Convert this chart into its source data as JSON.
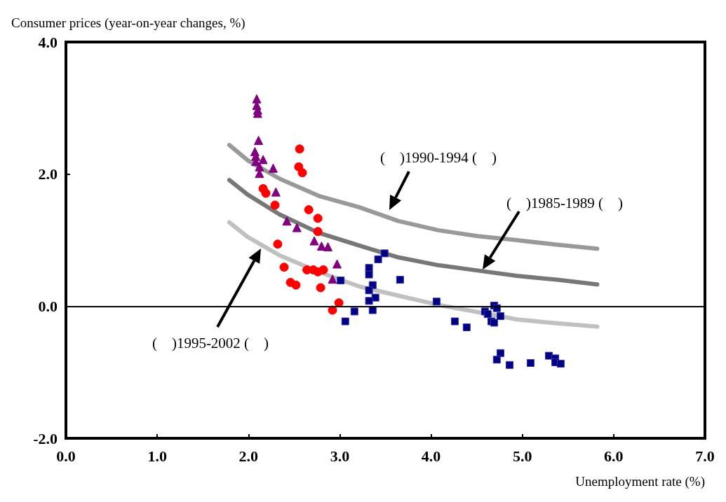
{
  "chart_data": {
    "type": "scatter",
    "xlabel": "Unemployment rate (%)",
    "ylabel": "Consumer prices (year-on-year changes, %)",
    "xlim": [
      0,
      7
    ],
    "xticks": [
      {
        "value": 0,
        "label": "0.0"
      },
      {
        "value": 1,
        "label": "1.0"
      },
      {
        "value": 2,
        "label": "2.0"
      },
      {
        "value": 3,
        "label": "3.0"
      },
      {
        "value": 4,
        "label": "4.0"
      },
      {
        "value": 5,
        "label": "5.0"
      },
      {
        "value": 6,
        "label": "6.0"
      },
      {
        "value": 7,
        "label": "7.0"
      }
    ],
    "ylim": [
      -2,
      4
    ],
    "yticks": [
      {
        "value": -2,
        "label": "-2.0"
      },
      {
        "value": 0,
        "label": "0.0"
      },
      {
        "value": 2,
        "label": "2.0"
      },
      {
        "value": 4,
        "label": "4.0"
      }
    ],
    "grid": false,
    "ref_lines": [
      {
        "axis": "y",
        "value": 0,
        "color": "#000000"
      }
    ],
    "annotations": [
      "(    )1990-1994 (    )",
      "(    )1985-1989 (    )",
      "(    )1995-2002 (    )"
    ],
    "series": [
      {
        "type": "line",
        "color": "#999999",
        "marker": "none",
        "x": [
          1.79,
          1.99,
          2.34,
          2.77,
          3.21,
          3.64,
          4.08,
          4.51,
          4.94,
          5.38,
          5.82
        ],
        "values": [
          2.44,
          2.21,
          1.93,
          1.67,
          1.5,
          1.29,
          1.15,
          1.06,
          1.0,
          0.93,
          0.87
        ]
      },
      {
        "type": "line",
        "color": "#777777",
        "marker": "none",
        "x": [
          1.79,
          1.99,
          2.34,
          2.77,
          3.21,
          3.64,
          4.08,
          4.51,
          4.94,
          5.38,
          5.82
        ],
        "values": [
          1.91,
          1.69,
          1.39,
          1.11,
          0.92,
          0.74,
          0.62,
          0.54,
          0.46,
          0.4,
          0.33
        ]
      },
      {
        "type": "line",
        "color": "#c0c0c0",
        "marker": "none",
        "x": [
          1.79,
          1.99,
          2.34,
          2.77,
          3.21,
          3.64,
          4.08,
          4.51,
          4.94,
          5.38,
          5.82
        ],
        "values": [
          1.27,
          1.05,
          0.77,
          0.52,
          0.3,
          0.16,
          0.02,
          -0.09,
          -0.2,
          -0.26,
          -0.31
        ]
      },
      {
        "color": "#800080",
        "marker": "triangle",
        "x": [
          2.09,
          2.09,
          2.1,
          2.1,
          2.11,
          2.07,
          2.08,
          2.08,
          2.16,
          2.12,
          2.12,
          2.27,
          2.3,
          2.42,
          2.53,
          2.72,
          2.8,
          2.87,
          2.97,
          2.92
        ],
        "values": [
          3.14,
          3.04,
          2.97,
          2.92,
          2.51,
          2.34,
          2.27,
          2.19,
          2.22,
          2.11,
          2.01,
          2.09,
          1.73,
          1.29,
          1.19,
          0.99,
          0.91,
          0.9,
          0.64,
          0.41
        ]
      },
      {
        "color": "#ff0000",
        "marker": "circle",
        "x": [
          2.56,
          2.55,
          2.59,
          2.16,
          2.19,
          2.29,
          2.66,
          2.76,
          2.76,
          2.32,
          2.39,
          2.64,
          2.71,
          2.76,
          2.82,
          2.46,
          2.52,
          2.79,
          2.99,
          2.92
        ],
        "values": [
          2.38,
          2.11,
          2.02,
          1.78,
          1.71,
          1.53,
          1.46,
          1.33,
          1.13,
          0.94,
          0.59,
          0.55,
          0.55,
          0.52,
          0.55,
          0.36,
          0.32,
          0.28,
          0.05,
          -0.06
        ]
      },
      {
        "color": "#000080",
        "marker": "square",
        "x": [
          3.49,
          3.42,
          3.32,
          3.32,
          3.66,
          3.01,
          3.36,
          3.32,
          3.39,
          3.32,
          4.06,
          3.36,
          3.16,
          3.06,
          4.69,
          4.72,
          4.59,
          4.62,
          4.76,
          4.66,
          4.69,
          4.26,
          4.39,
          4.76,
          4.72,
          4.86,
          5.09,
          5.29,
          5.36,
          5.36,
          5.42
        ],
        "values": [
          0.8,
          0.71,
          0.58,
          0.48,
          0.4,
          0.39,
          0.32,
          0.24,
          0.13,
          0.08,
          0.07,
          -0.06,
          -0.08,
          -0.23,
          0.01,
          -0.03,
          -0.08,
          -0.12,
          -0.15,
          -0.23,
          -0.25,
          -0.23,
          -0.32,
          -0.71,
          -0.81,
          -0.89,
          -0.86,
          -0.75,
          -0.79,
          -0.85,
          -0.87
        ]
      }
    ]
  }
}
